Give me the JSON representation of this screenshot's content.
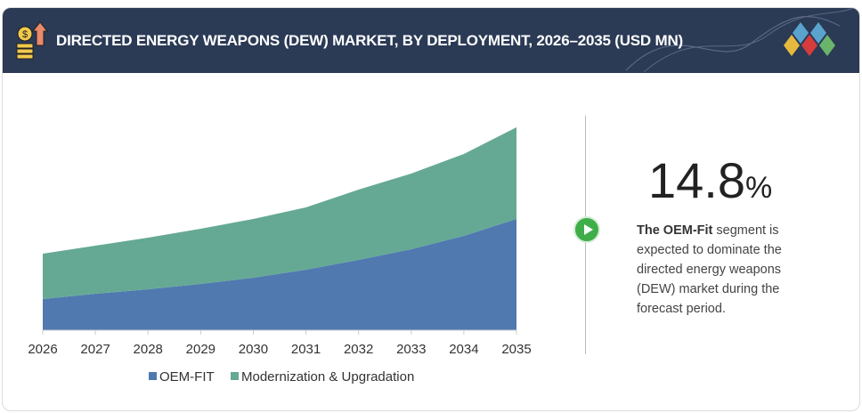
{
  "header": {
    "title": "DIRECTED ENERGY WEAPONS (DEW) MARKET, BY DEPLOYMENT, 2026–2035 (USD MN)",
    "icon": "coins-arrow-up-icon",
    "logo": "diamond-logo"
  },
  "highlight": {
    "value": "14.8",
    "unit": "%",
    "desc_bold": "The OEM-Fit",
    "desc_rest": " segment is expected to dominate the directed energy weapons (DEW) market during the forecast period."
  },
  "chart_data": {
    "type": "area",
    "stacked": true,
    "categories": [
      "2026",
      "2027",
      "2028",
      "2029",
      "2030",
      "2031",
      "2032",
      "2033",
      "2034",
      "2035"
    ],
    "series": [
      {
        "name": "OEM-FIT",
        "color": "#5079b0",
        "values": [
          35,
          41,
          46,
          52,
          59,
          68,
          79,
          91,
          106,
          125
        ]
      },
      {
        "name": "Modernization & Upgradation",
        "color": "#65a994",
        "values": [
          51,
          54,
          58,
          62,
          66,
          70,
          79,
          85,
          92,
          103
        ]
      }
    ],
    "ylim": [
      0,
      240
    ],
    "grid": false,
    "legend": "bottom"
  }
}
